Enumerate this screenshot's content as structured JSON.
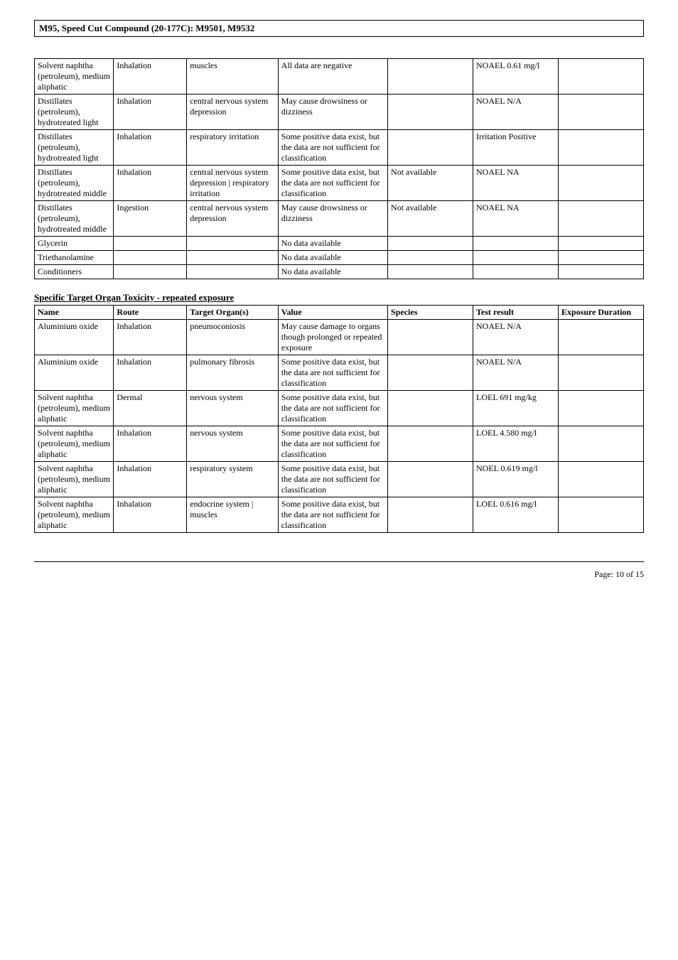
{
  "doc_title": "M95, Speed Cut Compound (20-177C): M9501, M9532",
  "section_title": "Specific Target Organ Toxicity - repeated exposure",
  "page_footer": "Page: 10 of  15",
  "table1": {
    "col_widths": [
      "13%",
      "12%",
      "15%",
      "18%",
      "14%",
      "14%",
      "14%"
    ],
    "rows": [
      {
        "c": [
          "Solvent naphtha (petroleum), medium aliphatic",
          "Inhalation",
          "muscles",
          "All data are negative",
          "",
          "NOAEL 0.61 mg/l",
          ""
        ]
      },
      {
        "c": [
          "Distillates (petroleum), hydrotreated light",
          "Inhalation",
          "central nervous system depression",
          "May cause drowsiness or dizziness",
          "",
          "NOAEL N/A",
          ""
        ]
      },
      {
        "c": [
          "Distillates (petroleum), hydrotreated light",
          "Inhalation",
          "respiratory irritation",
          "Some positive data exist, but the data are not sufficient for classification",
          "",
          "Irritation Positive",
          ""
        ]
      },
      {
        "c": [
          "Distillates (petroleum), hydrotreated middle",
          "Inhalation",
          "central nervous system depression | respiratory irritation",
          "Some positive data exist, but the data are not sufficient for classification",
          "Not available",
          "NOAEL NA",
          ""
        ]
      },
      {
        "c": [
          "Distillates (petroleum), hydrotreated middle",
          "Ingestion",
          "central nervous system depression",
          "May cause drowsiness or dizziness",
          "Not available",
          "NOAEL NA",
          ""
        ]
      },
      {
        "c": [
          "Glycerin",
          "",
          "",
          "No data available",
          "",
          "",
          ""
        ]
      },
      {
        "c": [
          "Triethanolamine",
          "",
          "",
          "No data available",
          "",
          "",
          ""
        ]
      },
      {
        "c": [
          "Conditioners",
          "",
          "",
          "No data available",
          "",
          "",
          ""
        ]
      }
    ]
  },
  "table2": {
    "col_widths": [
      "13%",
      "12%",
      "15%",
      "18%",
      "14%",
      "14%",
      "14%"
    ],
    "headers": [
      "Name",
      "Route",
      "Target Organ(s)",
      "Value",
      "Species",
      "Test result",
      "Exposure Duration"
    ],
    "rows": [
      {
        "c": [
          "Aluminium oxide",
          "Inhalation",
          "pneumoconiosis",
          "May cause damage to organs though prolonged or repeated exposure",
          "",
          "NOAEL N/A",
          ""
        ]
      },
      {
        "c": [
          "Aluminium oxide",
          "Inhalation",
          "pulmonary fibrosis",
          "Some positive data exist, but the data are not sufficient for classification",
          "",
          "NOAEL N/A",
          ""
        ]
      },
      {
        "c": [
          "Solvent naphtha (petroleum), medium aliphatic",
          "Dermal",
          "nervous system",
          "Some positive data exist, but the data are not sufficient for classification",
          "",
          "LOEL 691 mg/kg",
          ""
        ]
      },
      {
        "c": [
          "Solvent naphtha (petroleum), medium aliphatic",
          "Inhalation",
          "nervous system",
          "Some positive data exist, but the data are not sufficient for classification",
          "",
          "LOEL 4.580 mg/l",
          ""
        ]
      },
      {
        "c": [
          "Solvent naphtha (petroleum), medium aliphatic",
          "Inhalation",
          "respiratory system",
          "Some positive data exist, but the data are not sufficient for classification",
          "",
          "NOEL 0.619 mg/l",
          ""
        ]
      },
      {
        "c": [
          "Solvent naphtha (petroleum), medium aliphatic",
          "Inhalation",
          "endocrine system | muscles",
          "Some positive data exist, but the data are not sufficient for classification",
          "",
          "LOEL 0.616 mg/l",
          ""
        ]
      }
    ]
  }
}
